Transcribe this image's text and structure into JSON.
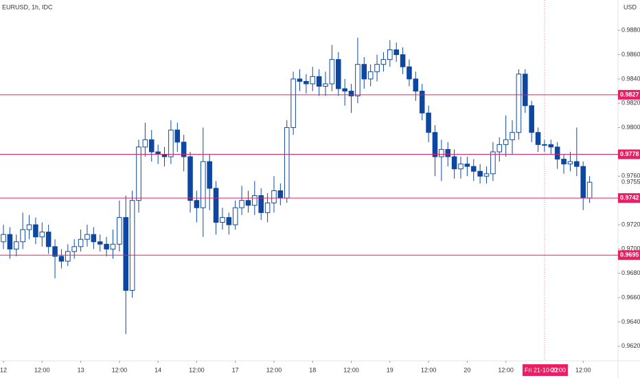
{
  "chart_data": {
    "type": "candlestick",
    "title": "EURUSD, 1h, IDC",
    "currency": "USD",
    "x": [
      0,
      2,
      4,
      6,
      8,
      10,
      12,
      14,
      16,
      18,
      20,
      22,
      24,
      26,
      28,
      30,
      32,
      34,
      36,
      38,
      40,
      42,
      44,
      46,
      48,
      50,
      52,
      54,
      56,
      58,
      60,
      62,
      64,
      66,
      68,
      70,
      72,
      74,
      76,
      78,
      80,
      82,
      84,
      86,
      88,
      90,
      92,
      94,
      96,
      98,
      100,
      102,
      104,
      106,
      108,
      110,
      112,
      114,
      116,
      118,
      120,
      122,
      124,
      126,
      128,
      130,
      132,
      134,
      136,
      138,
      140,
      142,
      144,
      146,
      148,
      150,
      152,
      154,
      156,
      158,
      160,
      162,
      164,
      166,
      168,
      170,
      172,
      174,
      176,
      178,
      180,
      182
    ],
    "open": [
      0.9706,
      0.9712,
      0.97,
      0.9706,
      0.9716,
      0.972,
      0.971,
      0.9714,
      0.9702,
      0.9694,
      0.969,
      0.9698,
      0.9702,
      0.9708,
      0.9712,
      0.9706,
      0.9704,
      0.97,
      0.9704,
      0.9726,
      0.9666,
      0.974,
      0.9784,
      0.979,
      0.978,
      0.9778,
      0.9776,
      0.9798,
      0.9788,
      0.9776,
      0.974,
      0.9734,
      0.9772,
      0.975,
      0.9722,
      0.9726,
      0.972,
      0.9734,
      0.974,
      0.9736,
      0.9744,
      0.973,
      0.9738,
      0.9748,
      0.9742,
      0.98,
      0.984,
      0.9838,
      0.9836,
      0.9842,
      0.9834,
      0.9836,
      0.9856,
      0.9832,
      0.983,
      0.9826,
      0.9852,
      0.984,
      0.9846,
      0.9852,
      0.9856,
      0.9864,
      0.986,
      0.985,
      0.984,
      0.983,
      0.9812,
      0.9796,
      0.9776,
      0.9782,
      0.9776,
      0.9766,
      0.977,
      0.9768,
      0.9764,
      0.976,
      0.9762,
      0.978,
      0.9786,
      0.979,
      0.9796,
      0.9844,
      0.9818,
      0.9796,
      0.9786,
      0.9786,
      0.9784,
      0.9774,
      0.977,
      0.9772,
      0.9768,
      0.9742
    ],
    "high": [
      0.972,
      0.9718,
      0.9712,
      0.973,
      0.9728,
      0.9726,
      0.9722,
      0.972,
      0.9708,
      0.97,
      0.9704,
      0.9708,
      0.9716,
      0.972,
      0.9718,
      0.9712,
      0.971,
      0.9716,
      0.974,
      0.9744,
      0.9748,
      0.979,
      0.9804,
      0.9798,
      0.9786,
      0.9784,
      0.9806,
      0.9804,
      0.9794,
      0.978,
      0.9748,
      0.98,
      0.9778,
      0.9756,
      0.9734,
      0.973,
      0.974,
      0.9752,
      0.9748,
      0.9756,
      0.975,
      0.9746,
      0.976,
      0.9754,
      0.9806,
      0.9846,
      0.9848,
      0.9844,
      0.985,
      0.9848,
      0.9846,
      0.9868,
      0.9862,
      0.984,
      0.9836,
      0.9874,
      0.9858,
      0.9852,
      0.986,
      0.9862,
      0.9872,
      0.987,
      0.9866,
      0.9856,
      0.9846,
      0.9836,
      0.9818,
      0.9802,
      0.979,
      0.9788,
      0.9782,
      0.9776,
      0.9776,
      0.9774,
      0.977,
      0.9768,
      0.9788,
      0.9792,
      0.981,
      0.9806,
      0.9848,
      0.9848,
      0.9822,
      0.98,
      0.979,
      0.979,
      0.9788,
      0.9778,
      0.978,
      0.98,
      0.9772,
      0.976
    ],
    "low": [
      0.97,
      0.9692,
      0.9694,
      0.97,
      0.9708,
      0.9704,
      0.9702,
      0.9696,
      0.9676,
      0.9684,
      0.9686,
      0.9692,
      0.9698,
      0.9702,
      0.97,
      0.9698,
      0.9694,
      0.9692,
      0.9698,
      0.963,
      0.966,
      0.973,
      0.9776,
      0.9772,
      0.977,
      0.9768,
      0.977,
      0.978,
      0.9764,
      0.973,
      0.9722,
      0.971,
      0.9732,
      0.9712,
      0.9716,
      0.9712,
      0.9716,
      0.9728,
      0.973,
      0.9728,
      0.9724,
      0.9722,
      0.973,
      0.9736,
      0.9738,
      0.9794,
      0.983,
      0.9828,
      0.983,
      0.9826,
      0.9826,
      0.983,
      0.9826,
      0.9818,
      0.9812,
      0.982,
      0.9832,
      0.9834,
      0.9838,
      0.9846,
      0.985,
      0.9854,
      0.9844,
      0.9834,
      0.9822,
      0.9806,
      0.9788,
      0.976,
      0.9756,
      0.9768,
      0.9758,
      0.9758,
      0.976,
      0.9756,
      0.9754,
      0.9754,
      0.9756,
      0.9772,
      0.9776,
      0.9778,
      0.979,
      0.9812,
      0.9788,
      0.978,
      0.978,
      0.9778,
      0.9766,
      0.9762,
      0.9764,
      0.976,
      0.9732,
      0.9738
    ],
    "close": [
      0.9712,
      0.97,
      0.9706,
      0.9716,
      0.972,
      0.971,
      0.9714,
      0.9702,
      0.9694,
      0.969,
      0.9698,
      0.9702,
      0.9708,
      0.9712,
      0.9706,
      0.9704,
      0.97,
      0.9704,
      0.9726,
      0.9666,
      0.974,
      0.9784,
      0.979,
      0.978,
      0.9778,
      0.9776,
      0.9798,
      0.9788,
      0.9776,
      0.974,
      0.9734,
      0.9772,
      0.975,
      0.9722,
      0.9726,
      0.972,
      0.9734,
      0.974,
      0.9736,
      0.9744,
      0.973,
      0.9738,
      0.9748,
      0.9742,
      0.98,
      0.984,
      0.9838,
      0.9836,
      0.9842,
      0.9834,
      0.9836,
      0.9856,
      0.9832,
      0.983,
      0.9826,
      0.9852,
      0.984,
      0.9846,
      0.9852,
      0.9856,
      0.9864,
      0.986,
      0.985,
      0.984,
      0.983,
      0.9812,
      0.9796,
      0.9776,
      0.9782,
      0.9776,
      0.9766,
      0.977,
      0.9768,
      0.9764,
      0.976,
      0.9762,
      0.978,
      0.9786,
      0.979,
      0.9796,
      0.9844,
      0.9818,
      0.9796,
      0.9786,
      0.9786,
      0.9784,
      0.9774,
      0.977,
      0.9772,
      0.9768,
      0.9742,
      0.9755
    ],
    "up_color": "#ffffff",
    "down_color": "#0d47a1",
    "border_color": "#0d47a1",
    "xlim": [
      -1.07,
      190.83
    ],
    "ylim": [
      0.9608,
      0.9905
    ],
    "xticks": [
      {
        "value": 0,
        "label": "12"
      },
      {
        "value": 12,
        "label": "12:00"
      },
      {
        "value": 24,
        "label": "13"
      },
      {
        "value": 36,
        "label": "12:00"
      },
      {
        "value": 48,
        "label": "14"
      },
      {
        "value": 60,
        "label": "12:00"
      },
      {
        "value": 72,
        "label": "17"
      },
      {
        "value": 84,
        "label": "12:00"
      },
      {
        "value": 96,
        "label": "18"
      },
      {
        "value": 108,
        "label": "12:00"
      },
      {
        "value": 120,
        "label": "19"
      },
      {
        "value": 132,
        "label": "12:00"
      },
      {
        "value": 144,
        "label": "20"
      },
      {
        "value": 156,
        "label": "12:00"
      },
      {
        "value": 180,
        "label": "12:00"
      }
    ],
    "yticks": [
      {
        "value": 0.988,
        "label": "0.9880"
      },
      {
        "value": 0.986,
        "label": "0.9860"
      },
      {
        "value": 0.984,
        "label": "0.9840"
      },
      {
        "value": 0.982,
        "label": "0.9820"
      },
      {
        "value": 0.98,
        "label": "0.9800"
      },
      {
        "value": 0.976,
        "label": "0.9760"
      },
      {
        "value": 0.972,
        "label": "0.9720"
      },
      {
        "value": 0.97,
        "label": "0.9700"
      },
      {
        "value": 0.968,
        "label": "0.9680"
      },
      {
        "value": 0.966,
        "label": "0.9660"
      },
      {
        "value": 0.964,
        "label": "0.9640"
      },
      {
        "value": 0.962,
        "label": "0.9620"
      }
    ],
    "levels": [
      0.9827,
      0.9778,
      0.9742,
      0.9695
    ],
    "level_color": "#e91e63",
    "last_price": 0.9755,
    "crosshair": {
      "x": 168,
      "date": "Fri 21-10-22",
      "time": "00:00"
    }
  }
}
